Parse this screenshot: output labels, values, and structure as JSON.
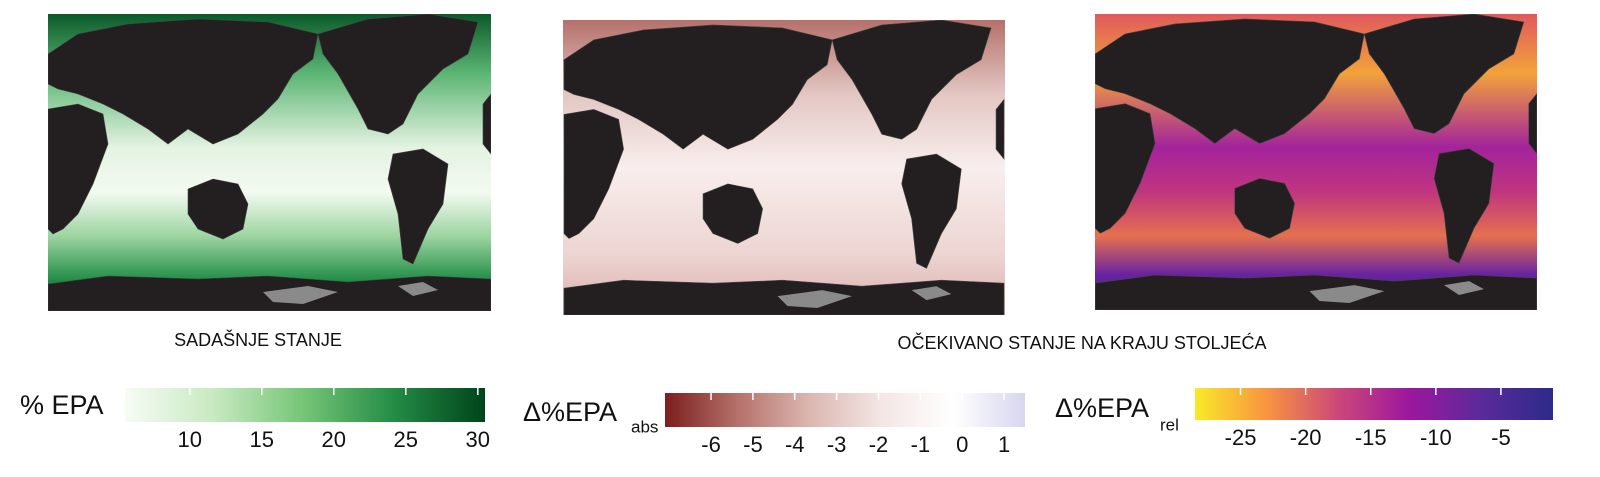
{
  "captions": [
    "SADAŠNJE STANJE",
    "OČEKIVANO STANJE NA KRAJU STOLJEĆA"
  ],
  "colorbars": [
    {
      "label": "% EPA",
      "colors": [
        "#f7fcf5",
        "#c7e9c0",
        "#74c476",
        "#238b45",
        "#00441b"
      ],
      "lim": [
        5.5,
        30.5
      ],
      "ticks": [
        10,
        15,
        20,
        25,
        30
      ]
    },
    {
      "label": "Δ%EPA",
      "sublabel": "abs",
      "colors": [
        "#7b1e1e",
        "#b5706a",
        "#dcb6b0",
        "#f3e6e4",
        "#ffffff",
        "#d8d6ee"
      ],
      "lim": [
        -7.1,
        1.5
      ],
      "ticks": [
        -6,
        -5,
        -4,
        -3,
        -2,
        -1,
        0,
        1
      ]
    },
    {
      "label": "Δ%EPA",
      "sublabel": "rel",
      "colors": [
        "#f8ea28",
        "#f89540",
        "#cc4778",
        "#9c179e",
        "#5a2a9a",
        "#2d2a8a"
      ],
      "lim": [
        -28.5,
        -1
      ],
      "ticks": [
        -25,
        -20,
        -15,
        -10,
        -5
      ]
    }
  ]
}
